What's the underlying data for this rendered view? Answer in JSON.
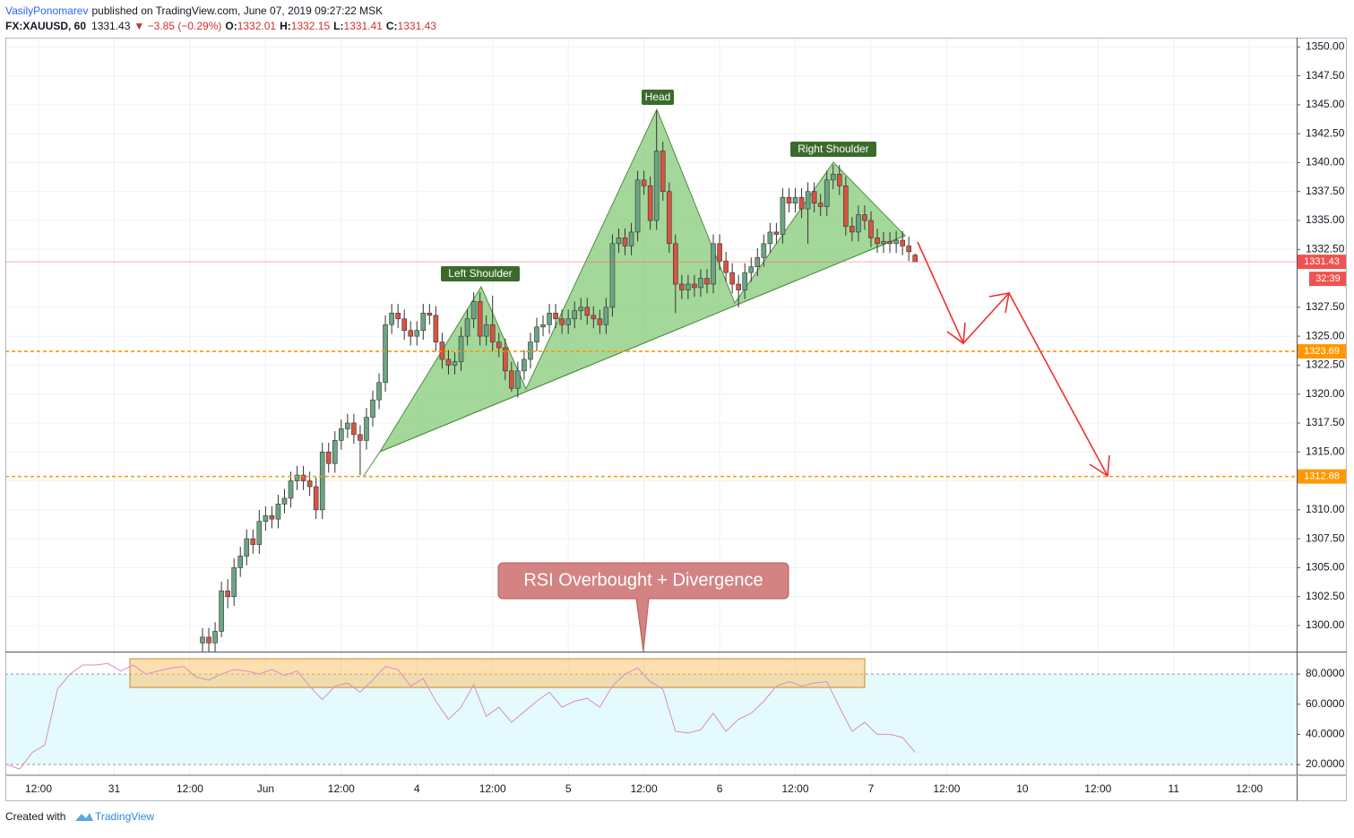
{
  "header": {
    "author": "VasilyPonomarev",
    "published": "published on TradingView.com, June 07, 2019 09:27:22 MSK"
  },
  "legend": {
    "symbol": "FX:XAUUSD, 60",
    "last": 1331.43,
    "change": "▼ −3.85 (−0.29%)",
    "ohlc": [
      {
        "label": "O:",
        "value": 1332.01
      },
      {
        "label": "H:",
        "value": 1332.15
      },
      {
        "label": "L:",
        "value": 1331.41
      },
      {
        "label": "C:",
        "value": 1331.43
      }
    ]
  },
  "chart_data": [
    {
      "type": "candlestick",
      "up_color": "#6ba583",
      "down_color": "#d75442",
      "grid": true,
      "xlim": [
        -5.26,
        199.5
      ],
      "ylim": [
        1297.75,
        1350.8
      ],
      "xticks": [
        {
          "value": 0,
          "label": "12:00"
        },
        {
          "value": 12,
          "label": "31"
        },
        {
          "value": 24,
          "label": "12:00"
        },
        {
          "value": 36,
          "label": "Jun"
        },
        {
          "value": 48,
          "label": "12:00"
        },
        {
          "value": 60,
          "label": "4"
        },
        {
          "value": 72,
          "label": "12:00"
        },
        {
          "value": 84,
          "label": "5"
        },
        {
          "value": 96,
          "label": "12:00"
        },
        {
          "value": 108,
          "label": "6"
        },
        {
          "value": 120,
          "label": "12:00"
        },
        {
          "value": 132,
          "label": "7"
        },
        {
          "value": 144,
          "label": "12:00"
        },
        {
          "value": 156,
          "label": "10"
        },
        {
          "value": 168,
          "label": "12:00"
        },
        {
          "value": 180,
          "label": "11"
        },
        {
          "value": 192,
          "label": "12:00"
        }
      ],
      "yticks": [
        {
          "value": 1350,
          "label": "1350.00"
        },
        {
          "value": 1347.5,
          "label": "1347.50"
        },
        {
          "value": 1345,
          "label": "1345.00"
        },
        {
          "value": 1342.5,
          "label": "1342.50"
        },
        {
          "value": 1340,
          "label": "1340.00"
        },
        {
          "value": 1337.5,
          "label": "1337.50"
        },
        {
          "value": 1335,
          "label": "1335.00"
        },
        {
          "value": 1332.5,
          "label": "1332.50"
        },
        {
          "value": 1327.5,
          "label": "1327.50"
        },
        {
          "value": 1325,
          "label": "1325.00"
        },
        {
          "value": 1322.5,
          "label": "1322.50"
        },
        {
          "value": 1320,
          "label": "1320.00"
        },
        {
          "value": 1317.5,
          "label": "1317.50"
        },
        {
          "value": 1315,
          "label": "1315.00"
        },
        {
          "value": 1312.5,
          "label": "1312.50"
        },
        {
          "value": 1310,
          "label": "1310.00"
        },
        {
          "value": 1307.5,
          "label": "1307.50"
        },
        {
          "value": 1305,
          "label": "1305.00"
        },
        {
          "value": 1302.5,
          "label": "1302.50"
        },
        {
          "value": 1300,
          "label": "1300.00"
        }
      ],
      "x": [
        26,
        27,
        28,
        29,
        30,
        31,
        32,
        33,
        34,
        35,
        36,
        37,
        38,
        39,
        40,
        41,
        42,
        43,
        44,
        45,
        46,
        47,
        48,
        49,
        50,
        51,
        52,
        53,
        54,
        55,
        56,
        57,
        58,
        59,
        60,
        61,
        62,
        63,
        64,
        65,
        66,
        67,
        68,
        69,
        70,
        71,
        72,
        73,
        74,
        75,
        76,
        77,
        78,
        79,
        80,
        81,
        82,
        83,
        84,
        85,
        86,
        87,
        88,
        89,
        90,
        91,
        92,
        93,
        94,
        95,
        96,
        97,
        98,
        99,
        100,
        101,
        102,
        103,
        104,
        105,
        106,
        107,
        108,
        109,
        110,
        111,
        112,
        113,
        114,
        115,
        116,
        117,
        118,
        119,
        120,
        121,
        122,
        123,
        124,
        125,
        126,
        127,
        128,
        129,
        130,
        131,
        132,
        133,
        134,
        135,
        136,
        137,
        138,
        139
      ],
      "open": [
        1298.5,
        1299,
        1298.5,
        1299.5,
        1303,
        1302.5,
        1305,
        1306,
        1307.5,
        1307,
        1309,
        1309.5,
        1309.2,
        1310.5,
        1311,
        1312.5,
        1313,
        1312.5,
        1312,
        1310,
        1315,
        1314,
        1316,
        1317,
        1317.5,
        1316.5,
        1316,
        1318,
        1319.5,
        1321,
        1326,
        1327,
        1326.5,
        1325.5,
        1325,
        1325.5,
        1327,
        1326.8,
        1324.5,
        1323,
        1322.5,
        1322.8,
        1325,
        1326.5,
        1328,
        1325,
        1326,
        1324.5,
        1324,
        1322,
        1320.5,
        1322,
        1323,
        1324.5,
        1325.8,
        1326,
        1327,
        1326.5,
        1326,
        1326.5,
        1327.2,
        1327.5,
        1326.8,
        1326.5,
        1326,
        1327.5,
        1333,
        1333.5,
        1332.8,
        1334,
        1338.5,
        1338,
        1335,
        1341,
        1337.5,
        1333,
        1329.5,
        1329,
        1329.5,
        1329.2,
        1330,
        1329.5,
        1333,
        1331.5,
        1330.5,
        1329.5,
        1329,
        1330.5,
        1331,
        1331.8,
        1333,
        1334,
        1333.8,
        1337,
        1336.5,
        1337,
        1336,
        1337.5,
        1336.5,
        1336.2,
        1338.5,
        1339,
        1338,
        1334.5,
        1334,
        1335.5,
        1335,
        1333.5,
        1333,
        1333.2,
        1333,
        1333.3,
        1332.8,
        1332.01
      ],
      "high": [
        1299.8,
        1299.8,
        1300.3,
        1303.8,
        1304,
        1305.8,
        1306.8,
        1308.3,
        1308.3,
        1310,
        1310.3,
        1310.3,
        1311.3,
        1311.8,
        1313.3,
        1313.8,
        1313.8,
        1313.3,
        1312.8,
        1315.8,
        1315.8,
        1316.8,
        1317.8,
        1318.3,
        1318.3,
        1317.3,
        1318.8,
        1320.3,
        1321.8,
        1326.8,
        1327.8,
        1327.8,
        1327.3,
        1326.3,
        1326.3,
        1327.8,
        1327.8,
        1327.6,
        1325.3,
        1323.8,
        1323.6,
        1325.8,
        1327.3,
        1328.8,
        1328.8,
        1326.8,
        1328.5,
        1325.3,
        1324.8,
        1322.8,
        1322.8,
        1323.8,
        1325.3,
        1326.6,
        1326.8,
        1327.8,
        1327.8,
        1327.3,
        1327.3,
        1328,
        1328.3,
        1328.3,
        1327.6,
        1327.3,
        1328.3,
        1333.8,
        1334.3,
        1334.3,
        1334.8,
        1339.3,
        1339.3,
        1338.8,
        1344.5,
        1341.8,
        1338.3,
        1333.8,
        1330.3,
        1330.3,
        1330.3,
        1330.8,
        1330.8,
        1333.8,
        1333.8,
        1332.3,
        1331.3,
        1330.3,
        1331.3,
        1331.8,
        1332.6,
        1333.8,
        1334.8,
        1334.8,
        1337.8,
        1337.8,
        1337.8,
        1337.8,
        1338.3,
        1338.3,
        1337.3,
        1339.3,
        1339.8,
        1339.8,
        1338.8,
        1335.3,
        1336.3,
        1336.3,
        1335.8,
        1334.3,
        1334,
        1334,
        1334.1,
        1334.1,
        1333.6,
        1332.15
      ],
      "low": [
        1297.7,
        1297.7,
        1297.7,
        1299,
        1301.5,
        1301.7,
        1304.2,
        1305.2,
        1306.2,
        1306.2,
        1308.2,
        1308.4,
        1308.4,
        1309.7,
        1310.2,
        1311.7,
        1311.7,
        1311.2,
        1309.2,
        1309.2,
        1313.2,
        1313.2,
        1315.2,
        1316.2,
        1315.7,
        1313,
        1315.2,
        1317.2,
        1318.7,
        1320.2,
        1325.2,
        1325.7,
        1324.7,
        1324.2,
        1324.2,
        1324.7,
        1326,
        1323.7,
        1322.2,
        1321.7,
        1321.7,
        1322,
        1324.2,
        1325.7,
        1324.2,
        1324.2,
        1323.7,
        1323.2,
        1321.2,
        1320.2,
        1319.7,
        1321.2,
        1322.2,
        1323.7,
        1325,
        1325.2,
        1325.7,
        1325.2,
        1325.2,
        1325.7,
        1326.4,
        1326,
        1325.7,
        1325.2,
        1325.2,
        1326.7,
        1332.2,
        1332,
        1332,
        1333.2,
        1337.2,
        1334.2,
        1334.2,
        1336.7,
        1332.2,
        1327,
        1328.2,
        1328.2,
        1328.4,
        1328.4,
        1328.7,
        1328.7,
        1330.7,
        1329.7,
        1328.7,
        1327.5,
        1328.2,
        1329.7,
        1330.2,
        1331,
        1332.2,
        1333,
        1333,
        1335.7,
        1335.7,
        1335.2,
        1333,
        1335.7,
        1335.4,
        1335.4,
        1337.7,
        1337.2,
        1333.7,
        1333.2,
        1333.2,
        1334.2,
        1332.7,
        1332.2,
        1332.2,
        1332.2,
        1332.2,
        1332,
        1331.5,
        1331.41
      ],
      "close": [
        1299,
        1298.5,
        1299.5,
        1303,
        1302.5,
        1305,
        1306,
        1307.5,
        1307,
        1309,
        1309.5,
        1309.2,
        1310.5,
        1311,
        1312.5,
        1313,
        1312.5,
        1312,
        1310,
        1315,
        1314,
        1316,
        1317,
        1317.5,
        1316.5,
        1316,
        1318,
        1319.5,
        1321,
        1326,
        1327,
        1326.5,
        1325.5,
        1325,
        1325.5,
        1327,
        1326.8,
        1324.5,
        1323,
        1322.5,
        1322.8,
        1325,
        1326.5,
        1328,
        1325,
        1326,
        1324.5,
        1324,
        1322,
        1320.5,
        1322,
        1323,
        1324.5,
        1325.8,
        1326,
        1327,
        1326.5,
        1326,
        1326.5,
        1327.2,
        1327.5,
        1326.8,
        1326.5,
        1326,
        1327.5,
        1333,
        1333.5,
        1332.8,
        1334,
        1338.5,
        1338,
        1335,
        1341,
        1337.5,
        1333,
        1329.5,
        1329,
        1329.5,
        1329.2,
        1330,
        1329.5,
        1333,
        1331.5,
        1330.5,
        1329.5,
        1329,
        1330.5,
        1331,
        1331.8,
        1333,
        1334,
        1333.8,
        1337,
        1336.5,
        1337,
        1336,
        1337.5,
        1336.5,
        1336.2,
        1338.5,
        1339,
        1338,
        1334.5,
        1334,
        1335.5,
        1335,
        1333.5,
        1333,
        1333.2,
        1333,
        1333.3,
        1332.8,
        1332.3,
        1331.43
      ],
      "price_lines": [
        {
          "value": 1331.43,
          "color": "#ef5350",
          "style": "solid",
          "countdown": "32:39"
        },
        {
          "value": 1323.69,
          "color": "#ff9800",
          "style": "dashed"
        },
        {
          "value": 1312.88,
          "color": "#ff9800",
          "style": "dashed"
        }
      ],
      "annotations": [
        "Left Shoulder",
        "Head",
        "Right Shoulder",
        "RSI Overbought + Divergence"
      ]
    },
    {
      "type": "line",
      "ylim": [
        12.9,
        94.9
      ],
      "band": [
        20,
        80
      ],
      "band_color": "#e4fafd",
      "yticks": [
        {
          "value": 80,
          "label": "80.0000"
        },
        {
          "value": 60,
          "label": "60.0000"
        },
        {
          "value": 40,
          "label": "40.0000"
        },
        {
          "value": 20,
          "label": "20.0000"
        }
      ],
      "series": [
        {
          "color": "#d98cc4",
          "x": [
            -5,
            -3,
            -1,
            1,
            3,
            5,
            7,
            9,
            11,
            13,
            15,
            17,
            19,
            21,
            23,
            25,
            27,
            29,
            31,
            33,
            35,
            37,
            39,
            41,
            43,
            45,
            47,
            49,
            51,
            53,
            55,
            57,
            59,
            61,
            63,
            65,
            67,
            69,
            71,
            73,
            75,
            77,
            79,
            81,
            83,
            85,
            87,
            89,
            91,
            93,
            95,
            97,
            99,
            101,
            103,
            105,
            107,
            109,
            111,
            113,
            115,
            117,
            119,
            121,
            123,
            125,
            127,
            129,
            131,
            133,
            135,
            137,
            139
          ],
          "values": [
            20,
            17,
            28,
            33,
            70,
            80,
            86,
            86,
            87,
            82,
            86,
            80,
            82,
            84,
            85,
            78,
            76,
            80,
            83,
            82,
            80,
            83,
            79,
            82,
            72,
            63,
            72,
            74,
            68,
            76,
            85,
            83,
            72,
            77,
            62,
            50,
            58,
            73,
            52,
            58,
            48,
            55,
            62,
            68,
            58,
            62,
            64,
            58,
            72,
            80,
            84,
            75,
            70,
            42,
            41,
            43,
            54,
            42,
            50,
            54,
            62,
            72,
            75,
            72,
            74,
            75,
            58,
            42,
            48,
            40,
            40,
            38,
            28
          ]
        }
      ]
    }
  ],
  "footer": {
    "text": "Created with",
    "brand": "TradingView"
  }
}
